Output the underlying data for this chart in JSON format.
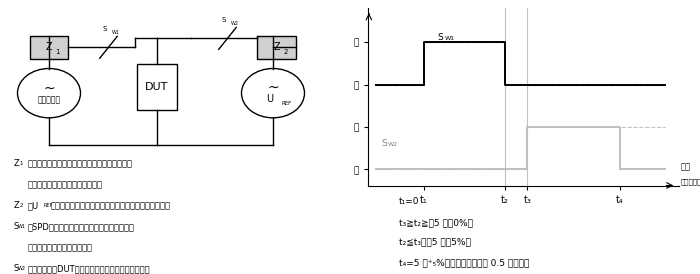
{
  "bg_color": "#ffffff",
  "lw": 1.0,
  "black": "#000000",
  "gray": "#808080",
  "light_gray": "#c0c0c0",
  "box_gray": "#d0d0d0",
  "timing": {
    "t1": 0.17,
    "t2": 0.46,
    "t3": 0.54,
    "t4": 0.87,
    "sw1_closed": 3.0,
    "sw1_open": 2.0,
    "sw2_closed": 1.0,
    "sw2_open": 0.0,
    "ymax": 3.8,
    "ymin": -0.4,
    "xmin": -0.03,
    "xmax": 1.08
  },
  "notes": [
    "t₁=0",
    "t₃≧t₂≧（5 秒＋0%）",
    "t₂≦t₃＜（5 秒＋5%）",
    "t₄=5 分⁺₅%、又は電流遷断後 0.5 秒間以上"
  ]
}
